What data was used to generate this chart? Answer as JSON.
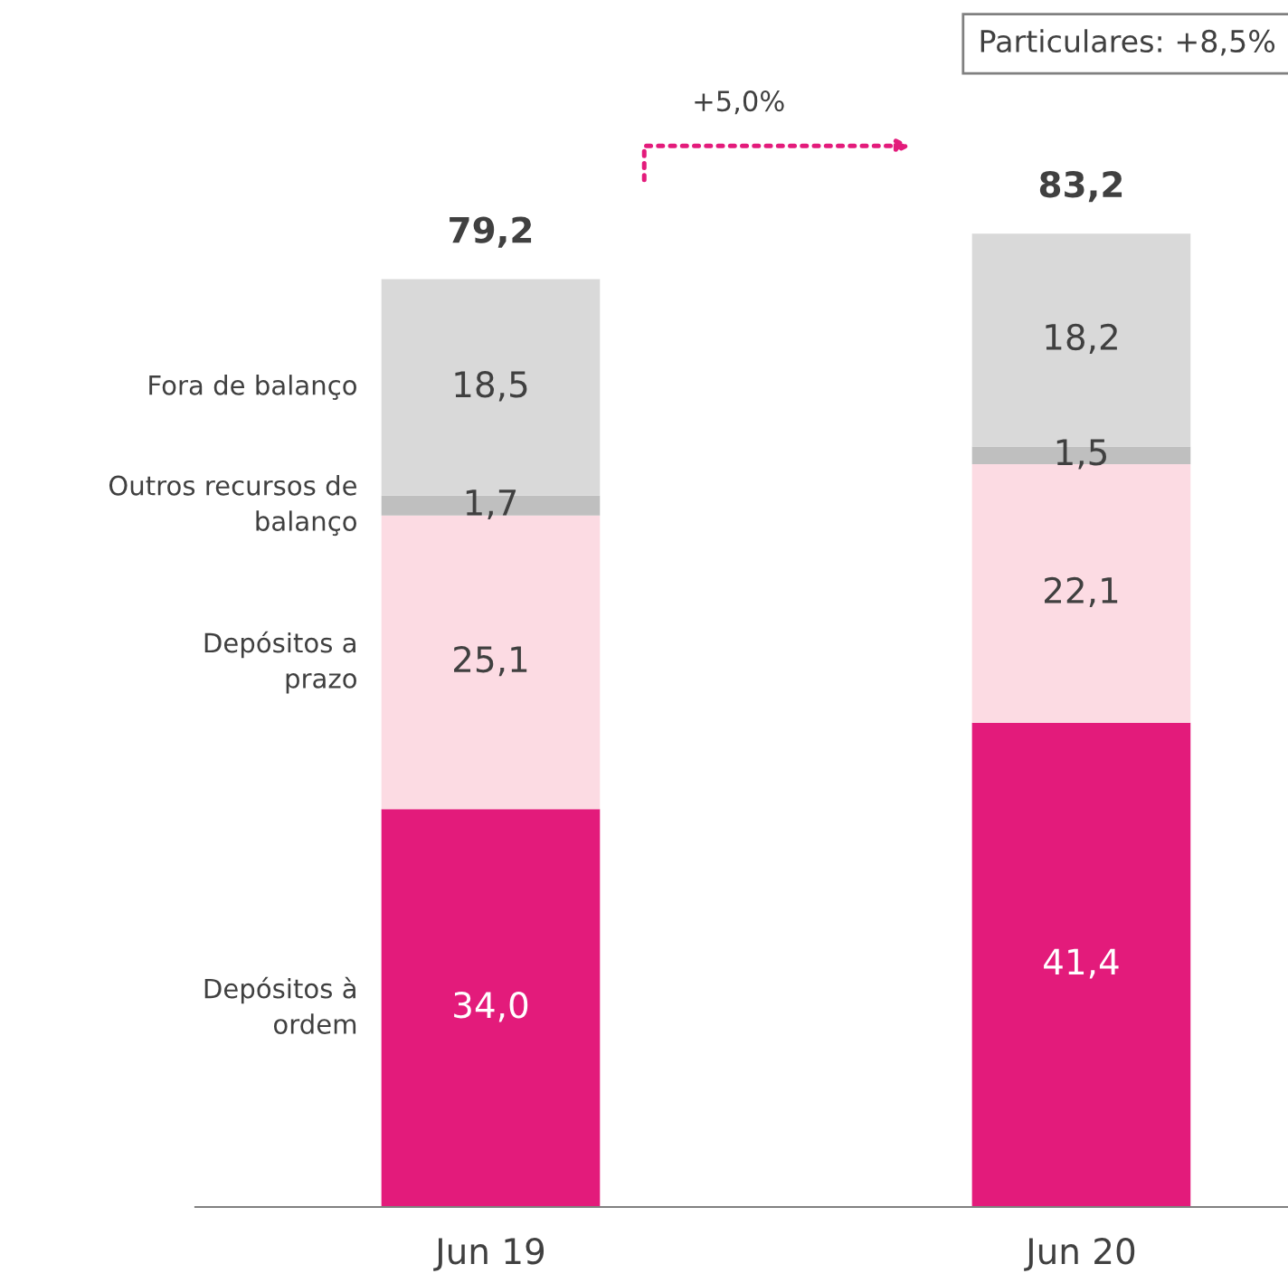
{
  "chart_data": {
    "type": "bar",
    "stacked": true,
    "categories": [
      "Jun 19",
      "Jun 20"
    ],
    "series": [
      {
        "name": "Depósitos à ordem",
        "color": "#e31b7b",
        "values": [
          34.0,
          41.4
        ],
        "value_labels": [
          "34,0",
          "41,4"
        ]
      },
      {
        "name": "Depósitos a prazo",
        "color": "#fcdbe3",
        "values": [
          25.1,
          22.1
        ],
        "value_labels": [
          "25,1",
          "22,1"
        ]
      },
      {
        "name": "Outros recursos de balanço",
        "color": "#bfbfbf",
        "values": [
          1.7,
          1.5
        ],
        "value_labels": [
          "1,7",
          "1,5"
        ]
      },
      {
        "name": "Fora de balanço",
        "color": "#d9d9d9",
        "values": [
          18.5,
          18.2
        ],
        "value_labels": [
          "18,5",
          "18,2"
        ]
      }
    ],
    "totals": [
      "79,2",
      "83,2"
    ],
    "annotations": [
      "+5,0%",
      "Particulares: +8,5%"
    ],
    "legend": false,
    "grid": false
  }
}
